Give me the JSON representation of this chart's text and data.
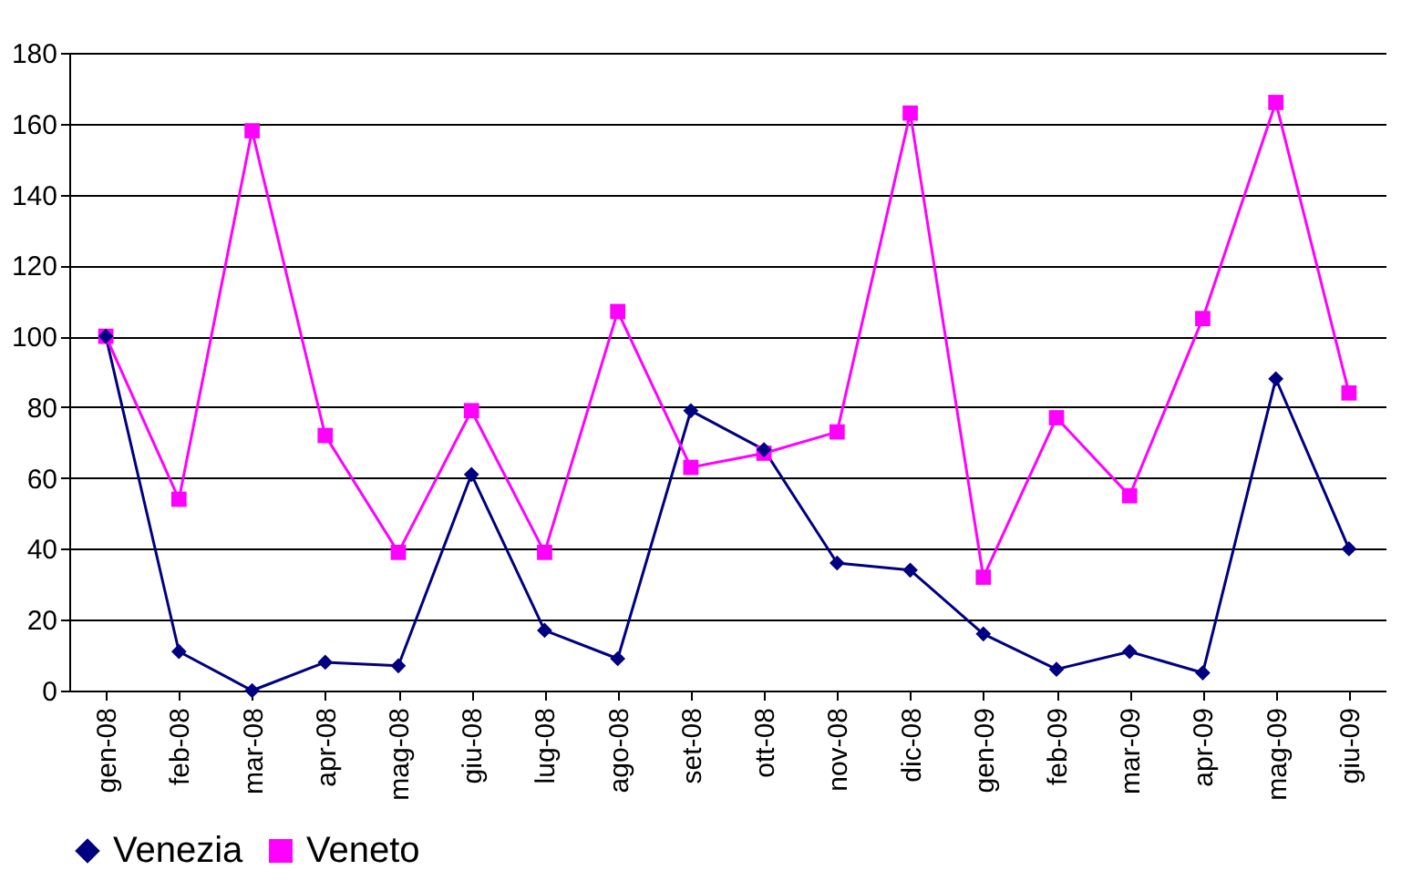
{
  "chart_data": {
    "type": "line",
    "categories": [
      "gen-08",
      "feb-08",
      "mar-08",
      "apr-08",
      "mag-08",
      "giu-08",
      "lug-08",
      "ago-08",
      "set-08",
      "ott-08",
      "nov-08",
      "dic-08",
      "gen-09",
      "feb-09",
      "mar-09",
      "apr-09",
      "mag-09",
      "giu-09"
    ],
    "series": [
      {
        "name": "Venezia",
        "color": "#000080",
        "marker": "diamond",
        "values": [
          100,
          11,
          0,
          8,
          7,
          61,
          17,
          9,
          79,
          68,
          36,
          34,
          16,
          6,
          11,
          5,
          88,
          40
        ]
      },
      {
        "name": "Veneto",
        "color": "#ff00ff",
        "marker": "square",
        "values": [
          100,
          54,
          158,
          72,
          39,
          79,
          39,
          107,
          63,
          67,
          73,
          163,
          32,
          77,
          55,
          105,
          166,
          84
        ]
      }
    ],
    "ylim": [
      0,
      180
    ],
    "yticks": [
      0,
      20,
      40,
      60,
      80,
      100,
      120,
      140,
      160,
      180
    ],
    "grid": "y",
    "legend": "bottom"
  }
}
